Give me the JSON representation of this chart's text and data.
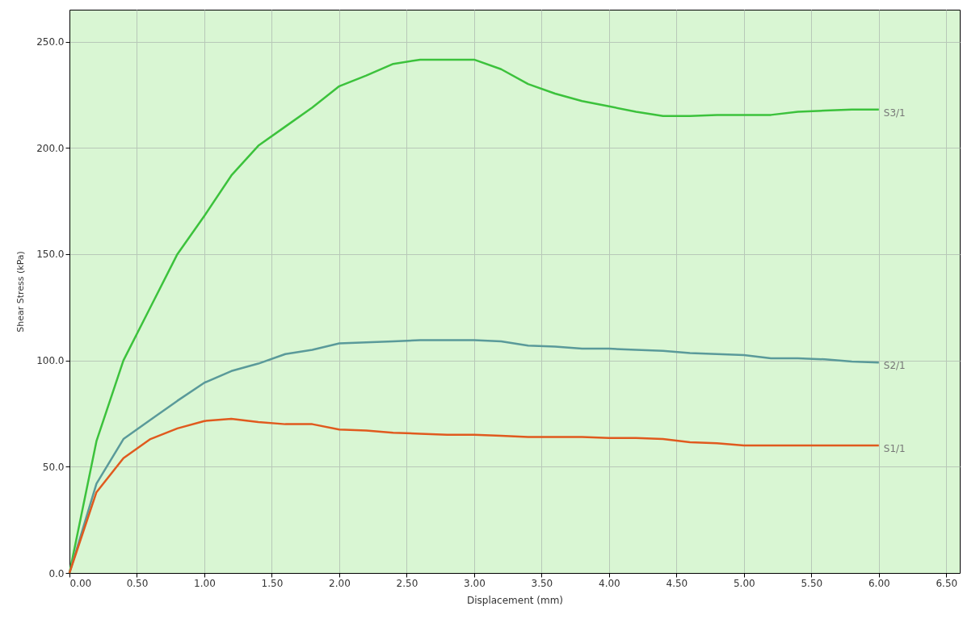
{
  "chart_data": {
    "type": "line",
    "xlabel": "Displacement (mm)",
    "ylabel": "Shear Stress (kPa)",
    "xlim": [
      0,
      6.6
    ],
    "ylim": [
      0,
      265
    ],
    "xticks": [
      {
        "value": 0,
        "label": "0.00"
      },
      {
        "value": 0.5,
        "label": "0.50"
      },
      {
        "value": 1,
        "label": "1.00"
      },
      {
        "value": 1.5,
        "label": "1.50"
      },
      {
        "value": 2,
        "label": "2.00"
      },
      {
        "value": 2.5,
        "label": "2.50"
      },
      {
        "value": 3,
        "label": "3.00"
      },
      {
        "value": 3.5,
        "label": "3.50"
      },
      {
        "value": 4,
        "label": "4.00"
      },
      {
        "value": 4.5,
        "label": "4.50"
      },
      {
        "value": 5,
        "label": "5.00"
      },
      {
        "value": 5.5,
        "label": "5.50"
      },
      {
        "value": 6,
        "label": "6.00"
      },
      {
        "value": 6.5,
        "label": "6.50"
      }
    ],
    "yticks": [
      {
        "value": 0,
        "label": "0.0"
      },
      {
        "value": 50,
        "label": "50.0"
      },
      {
        "value": 100,
        "label": "100.0"
      },
      {
        "value": 150,
        "label": "150.0"
      },
      {
        "value": 200,
        "label": "200.0"
      },
      {
        "value": 250,
        "label": "250.0"
      }
    ],
    "grid": true,
    "marker": "none",
    "line_style": "solid",
    "x": [
      0,
      0.2,
      0.4,
      0.6,
      0.8,
      1.0,
      1.2,
      1.4,
      1.6,
      1.8,
      2.0,
      2.2,
      2.4,
      2.6,
      2.8,
      3.0,
      3.2,
      3.4,
      3.6,
      3.8,
      4.0,
      4.2,
      4.4,
      4.6,
      4.8,
      5.0,
      5.2,
      5.4,
      5.6,
      5.8,
      6.0
    ],
    "series": [
      {
        "name": "S3/1",
        "color": "#3cc23c",
        "values": [
          0,
          62,
          100,
          125,
          150,
          168,
          187,
          201,
          210,
          219,
          229,
          234,
          239.5,
          241.5,
          241.5,
          241.5,
          237,
          230,
          225.5,
          222,
          219.5,
          217,
          215,
          215,
          215.5,
          215.5,
          215.5,
          217,
          217.5,
          218,
          218
        ]
      },
      {
        "name": "S2/1",
        "color": "#5a9a9a",
        "values": [
          0,
          42,
          63,
          72,
          81,
          89.5,
          95,
          98.5,
          103,
          105,
          108,
          108.5,
          109,
          109.5,
          109.5,
          109.5,
          109,
          107,
          106.5,
          105.5,
          105.5,
          105,
          104.5,
          103.5,
          103,
          102.5,
          101,
          101,
          100.5,
          99.5,
          99
        ]
      },
      {
        "name": "S1/1",
        "color": "#e05a1e",
        "values": [
          0,
          38,
          54,
          63,
          68,
          71.5,
          72.5,
          71,
          70,
          70,
          67.5,
          67,
          66,
          65.5,
          65,
          65,
          64.5,
          64,
          64,
          64,
          63.5,
          63.5,
          63,
          61.5,
          61,
          60,
          60,
          60,
          60,
          60,
          60
        ]
      }
    ]
  }
}
